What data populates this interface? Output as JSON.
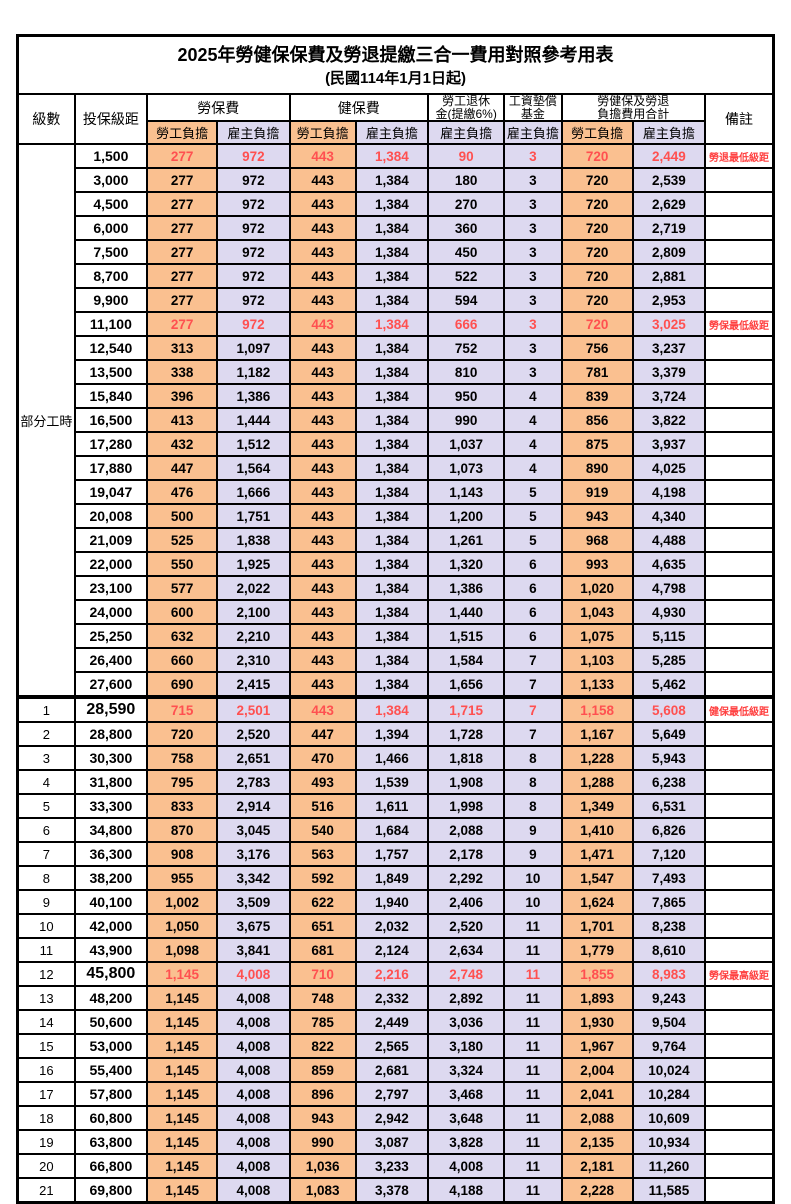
{
  "title": "2025年勞健保保費及勞退提繳三合一費用對照參考用表",
  "subtitle": "(民國114年1月1日起)",
  "colors": {
    "employee_col_bg": "#FAC090",
    "employer_col_bg": "#DDD9F0",
    "highlight_text": "#FF5050",
    "remark_text": "#FF4040",
    "grid": "#000000"
  },
  "header": {
    "level": "級數",
    "bracket": "投保級距",
    "labor_insurance": "勞保費",
    "health_insurance": "健保費",
    "pension_line1": "勞工退休",
    "pension_line2": "金(提繳6%)",
    "wage_fund_line1": "工資墊償",
    "wage_fund_line2": "基金",
    "total_line1": "勞健保及勞退",
    "total_line2": "負擔費用合計",
    "remark": "備註",
    "employee_share": "勞工負擔",
    "employer_share": "雇主負擔"
  },
  "part_time_label": "部分工時",
  "part_time_rowspan": 23,
  "rows": [
    {
      "part_time": true,
      "bracket": "1,500",
      "values": [
        "277",
        "972",
        "443",
        "1,384",
        "90",
        "3",
        "720",
        "2,449"
      ],
      "remark": "勞退最低級距",
      "red": true
    },
    {
      "bracket": "3,000",
      "values": [
        "277",
        "972",
        "443",
        "1,384",
        "180",
        "3",
        "720",
        "2,539"
      ]
    },
    {
      "bracket": "4,500",
      "values": [
        "277",
        "972",
        "443",
        "1,384",
        "270",
        "3",
        "720",
        "2,629"
      ]
    },
    {
      "bracket": "6,000",
      "values": [
        "277",
        "972",
        "443",
        "1,384",
        "360",
        "3",
        "720",
        "2,719"
      ]
    },
    {
      "bracket": "7,500",
      "values": [
        "277",
        "972",
        "443",
        "1,384",
        "450",
        "3",
        "720",
        "2,809"
      ]
    },
    {
      "bracket": "8,700",
      "values": [
        "277",
        "972",
        "443",
        "1,384",
        "522",
        "3",
        "720",
        "2,881"
      ]
    },
    {
      "bracket": "9,900",
      "values": [
        "277",
        "972",
        "443",
        "1,384",
        "594",
        "3",
        "720",
        "2,953"
      ]
    },
    {
      "bracket": "11,100",
      "values": [
        "277",
        "972",
        "443",
        "1,384",
        "666",
        "3",
        "720",
        "3,025"
      ],
      "remark": "勞保最低級距",
      "red": true
    },
    {
      "bracket": "12,540",
      "values": [
        "313",
        "1,097",
        "443",
        "1,384",
        "752",
        "3",
        "756",
        "3,237"
      ]
    },
    {
      "bracket": "13,500",
      "values": [
        "338",
        "1,182",
        "443",
        "1,384",
        "810",
        "3",
        "781",
        "3,379"
      ]
    },
    {
      "bracket": "15,840",
      "values": [
        "396",
        "1,386",
        "443",
        "1,384",
        "950",
        "4",
        "839",
        "3,724"
      ]
    },
    {
      "bracket": "16,500",
      "values": [
        "413",
        "1,444",
        "443",
        "1,384",
        "990",
        "4",
        "856",
        "3,822"
      ]
    },
    {
      "bracket": "17,280",
      "values": [
        "432",
        "1,512",
        "443",
        "1,384",
        "1,037",
        "4",
        "875",
        "3,937"
      ]
    },
    {
      "bracket": "17,880",
      "values": [
        "447",
        "1,564",
        "443",
        "1,384",
        "1,073",
        "4",
        "890",
        "4,025"
      ]
    },
    {
      "bracket": "19,047",
      "values": [
        "476",
        "1,666",
        "443",
        "1,384",
        "1,143",
        "5",
        "919",
        "4,198"
      ]
    },
    {
      "bracket": "20,008",
      "values": [
        "500",
        "1,751",
        "443",
        "1,384",
        "1,200",
        "5",
        "943",
        "4,340"
      ]
    },
    {
      "bracket": "21,009",
      "values": [
        "525",
        "1,838",
        "443",
        "1,384",
        "1,261",
        "5",
        "968",
        "4,488"
      ]
    },
    {
      "bracket": "22,000",
      "values": [
        "550",
        "1,925",
        "443",
        "1,384",
        "1,320",
        "6",
        "993",
        "4,635"
      ]
    },
    {
      "bracket": "23,100",
      "values": [
        "577",
        "2,022",
        "443",
        "1,384",
        "1,386",
        "6",
        "1,020",
        "4,798"
      ]
    },
    {
      "bracket": "24,000",
      "values": [
        "600",
        "2,100",
        "443",
        "1,384",
        "1,440",
        "6",
        "1,043",
        "4,930"
      ]
    },
    {
      "bracket": "25,250",
      "values": [
        "632",
        "2,210",
        "443",
        "1,384",
        "1,515",
        "6",
        "1,075",
        "5,115"
      ]
    },
    {
      "bracket": "26,400",
      "values": [
        "660",
        "2,310",
        "443",
        "1,384",
        "1,584",
        "7",
        "1,103",
        "5,285"
      ]
    },
    {
      "bracket": "27,600",
      "values": [
        "690",
        "2,415",
        "443",
        "1,384",
        "1,656",
        "7",
        "1,133",
        "5,462"
      ]
    },
    {
      "level": "1",
      "bracket": "28,590",
      "values": [
        "715",
        "2,501",
        "443",
        "1,384",
        "1,715",
        "7",
        "1,158",
        "5,608"
      ],
      "remark": "健保最低級距",
      "red": true,
      "bold": true,
      "thick_top": true
    },
    {
      "level": "2",
      "bracket": "28,800",
      "values": [
        "720",
        "2,520",
        "447",
        "1,394",
        "1,728",
        "7",
        "1,167",
        "5,649"
      ]
    },
    {
      "level": "3",
      "bracket": "30,300",
      "values": [
        "758",
        "2,651",
        "470",
        "1,466",
        "1,818",
        "8",
        "1,228",
        "5,943"
      ]
    },
    {
      "level": "4",
      "bracket": "31,800",
      "values": [
        "795",
        "2,783",
        "493",
        "1,539",
        "1,908",
        "8",
        "1,288",
        "6,238"
      ]
    },
    {
      "level": "5",
      "bracket": "33,300",
      "values": [
        "833",
        "2,914",
        "516",
        "1,611",
        "1,998",
        "8",
        "1,349",
        "6,531"
      ]
    },
    {
      "level": "6",
      "bracket": "34,800",
      "values": [
        "870",
        "3,045",
        "540",
        "1,684",
        "2,088",
        "9",
        "1,410",
        "6,826"
      ]
    },
    {
      "level": "7",
      "bracket": "36,300",
      "values": [
        "908",
        "3,176",
        "563",
        "1,757",
        "2,178",
        "9",
        "1,471",
        "7,120"
      ]
    },
    {
      "level": "8",
      "bracket": "38,200",
      "values": [
        "955",
        "3,342",
        "592",
        "1,849",
        "2,292",
        "10",
        "1,547",
        "7,493"
      ]
    },
    {
      "level": "9",
      "bracket": "40,100",
      "values": [
        "1,002",
        "3,509",
        "622",
        "1,940",
        "2,406",
        "10",
        "1,624",
        "7,865"
      ]
    },
    {
      "level": "10",
      "bracket": "42,000",
      "values": [
        "1,050",
        "3,675",
        "651",
        "2,032",
        "2,520",
        "11",
        "1,701",
        "8,238"
      ]
    },
    {
      "level": "11",
      "bracket": "43,900",
      "values": [
        "1,098",
        "3,841",
        "681",
        "2,124",
        "2,634",
        "11",
        "1,779",
        "8,610"
      ]
    },
    {
      "level": "12",
      "bracket": "45,800",
      "values": [
        "1,145",
        "4,008",
        "710",
        "2,216",
        "2,748",
        "11",
        "1,855",
        "8,983"
      ],
      "remark": "勞保最高級距",
      "red": true,
      "bold": true
    },
    {
      "level": "13",
      "bracket": "48,200",
      "values": [
        "1,145",
        "4,008",
        "748",
        "2,332",
        "2,892",
        "11",
        "1,893",
        "9,243"
      ]
    },
    {
      "level": "14",
      "bracket": "50,600",
      "values": [
        "1,145",
        "4,008",
        "785",
        "2,449",
        "3,036",
        "11",
        "1,930",
        "9,504"
      ]
    },
    {
      "level": "15",
      "bracket": "53,000",
      "values": [
        "1,145",
        "4,008",
        "822",
        "2,565",
        "3,180",
        "11",
        "1,967",
        "9,764"
      ]
    },
    {
      "level": "16",
      "bracket": "55,400",
      "values": [
        "1,145",
        "4,008",
        "859",
        "2,681",
        "3,324",
        "11",
        "2,004",
        "10,024"
      ]
    },
    {
      "level": "17",
      "bracket": "57,800",
      "values": [
        "1,145",
        "4,008",
        "896",
        "2,797",
        "3,468",
        "11",
        "2,041",
        "10,284"
      ]
    },
    {
      "level": "18",
      "bracket": "60,800",
      "values": [
        "1,145",
        "4,008",
        "943",
        "2,942",
        "3,648",
        "11",
        "2,088",
        "10,609"
      ]
    },
    {
      "level": "19",
      "bracket": "63,800",
      "values": [
        "1,145",
        "4,008",
        "990",
        "3,087",
        "3,828",
        "11",
        "2,135",
        "10,934"
      ]
    },
    {
      "level": "20",
      "bracket": "66,800",
      "values": [
        "1,145",
        "4,008",
        "1,036",
        "3,233",
        "4,008",
        "11",
        "2,181",
        "11,260"
      ]
    },
    {
      "level": "21",
      "bracket": "69,800",
      "values": [
        "1,145",
        "4,008",
        "1,083",
        "3,378",
        "4,188",
        "11",
        "2,228",
        "11,585"
      ]
    }
  ]
}
